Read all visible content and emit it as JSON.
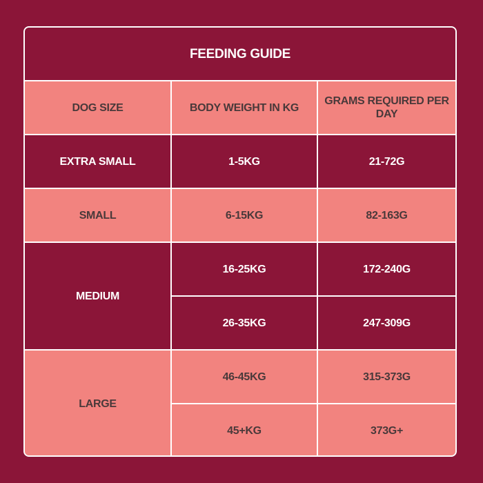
{
  "title": "FEEDING GUIDE",
  "columns": [
    "DOG SIZE",
    "BODY WEIGHT IN KG",
    "GRAMS REQUIRED PER DAY"
  ],
  "rows": [
    {
      "size": "EXTRA SMALL",
      "entries": [
        {
          "weight": "1-5KG",
          "grams": "21-72G"
        }
      ]
    },
    {
      "size": "SMALL",
      "entries": [
        {
          "weight": "6-15KG",
          "grams": "82-163G"
        }
      ]
    },
    {
      "size": "MEDIUM",
      "entries": [
        {
          "weight": "16-25KG",
          "grams": "172-240G"
        },
        {
          "weight": "26-35KG",
          "grams": "247-309G"
        }
      ]
    },
    {
      "size": "LARGE",
      "entries": [
        {
          "weight": "46-45KG",
          "grams": "315-373G"
        },
        {
          "weight": "45+KG",
          "grams": "373G+"
        }
      ]
    }
  ],
  "colors": {
    "background": "#8b1538",
    "light_cell": "#f2837f",
    "border": "#ffffff",
    "dark_text": "#3b3335"
  }
}
